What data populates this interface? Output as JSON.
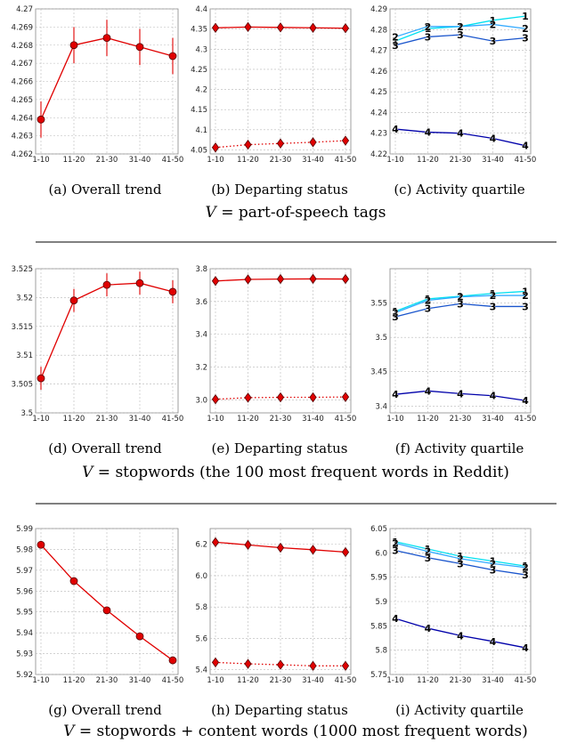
{
  "x_categories": [
    "1-10",
    "11-20",
    "21-30",
    "31-40",
    "41-50"
  ],
  "rows": [
    {
      "v_label": "V",
      "v_text": " = part-of-speech tags"
    },
    {
      "v_label": "V",
      "v_text": " = stopwords (the 100 most frequent words in Reddit)"
    },
    {
      "v_label": "V",
      "v_text": " = stopwords + content words (1000 most frequent words)"
    }
  ],
  "colors": {
    "red": "#e00000",
    "q1": "#00e0f0",
    "q2": "#33aaff",
    "q3": "#1a55cc",
    "q4": "#0000aa",
    "grid": "#b8b8b8"
  },
  "chart_data": [
    {
      "panel": "a",
      "caption": "(a) Overall trend",
      "type": "line",
      "x": [
        "1-10",
        "11-20",
        "21-30",
        "31-40",
        "41-50"
      ],
      "ylim": [
        4.262,
        4.27
      ],
      "yticks": [
        "4.262",
        "4.263",
        "4.264",
        "4.265",
        "4.266",
        "4.267",
        "4.268",
        "4.269",
        "4.27"
      ],
      "ytick_values": [
        4.262,
        4.263,
        4.264,
        4.265,
        4.266,
        4.267,
        4.268,
        4.269,
        4.27
      ],
      "series": [
        {
          "values": [
            4.2639,
            4.268,
            4.2684,
            4.2679,
            4.2674
          ],
          "err": [
            0.001,
            0.001,
            0.001,
            0.001,
            0.001
          ],
          "style": "solid",
          "marker": "circle",
          "color": "red"
        }
      ]
    },
    {
      "panel": "b",
      "caption": "(b) Departing status",
      "type": "line",
      "x": [
        "1-10",
        "11-20",
        "21-30",
        "31-40",
        "41-50"
      ],
      "ylim": [
        4.04,
        4.4
      ],
      "yticks": [
        "4.05",
        "4.1",
        "4.15",
        "4.2",
        "4.25",
        "4.3",
        "4.35",
        "4.4"
      ],
      "ytick_values": [
        4.05,
        4.1,
        4.15,
        4.2,
        4.25,
        4.3,
        4.35,
        4.4
      ],
      "series": [
        {
          "values": [
            4.353,
            4.355,
            4.354,
            4.353,
            4.352
          ],
          "style": "solid",
          "marker": "diamond",
          "color": "red"
        },
        {
          "values": [
            4.056,
            4.063,
            4.066,
            4.069,
            4.073
          ],
          "style": "dotted",
          "marker": "diamond",
          "color": "red"
        }
      ]
    },
    {
      "panel": "c",
      "caption": "(c) Activity quartile",
      "type": "line",
      "x": [
        "1-10",
        "11-20",
        "21-30",
        "31-40",
        "41-50"
      ],
      "ylim": [
        4.22,
        4.29
      ],
      "yticks": [
        "4.22",
        "4.23",
        "4.24",
        "4.25",
        "4.26",
        "4.27",
        "4.28",
        "4.29"
      ],
      "ytick_values": [
        4.22,
        4.23,
        4.24,
        4.25,
        4.26,
        4.27,
        4.28,
        4.29
      ],
      "series": [
        {
          "name": "1",
          "values": [
            4.2745,
            4.2805,
            4.2815,
            4.2845,
            4.2865
          ],
          "style": "solid",
          "marker": "label",
          "color": "q1"
        },
        {
          "name": "2",
          "values": [
            4.2765,
            4.2815,
            4.2815,
            4.2825,
            4.2805
          ],
          "style": "solid",
          "marker": "label",
          "color": "q2"
        },
        {
          "name": "3",
          "values": [
            4.2725,
            4.2765,
            4.2775,
            4.2745,
            4.276
          ],
          "style": "solid",
          "marker": "label",
          "color": "q3"
        },
        {
          "name": "4",
          "values": [
            4.232,
            4.2305,
            4.23,
            4.2275,
            4.224
          ],
          "style": "solid",
          "marker": "label",
          "color": "q4"
        }
      ]
    },
    {
      "panel": "d",
      "caption": "(d) Overall trend",
      "type": "line",
      "x": [
        "1-10",
        "11-20",
        "21-30",
        "31-40",
        "41-50"
      ],
      "ylim": [
        3.5,
        3.525
      ],
      "yticks": [
        "3.5",
        "3.505",
        "3.51",
        "3.515",
        "3.52",
        "3.525"
      ],
      "ytick_values": [
        3.5,
        3.505,
        3.51,
        3.515,
        3.52,
        3.525
      ],
      "series": [
        {
          "values": [
            3.506,
            3.5195,
            3.5222,
            3.5225,
            3.521
          ],
          "err": [
            0.002,
            0.002,
            0.002,
            0.002,
            0.002
          ],
          "style": "solid",
          "marker": "circle",
          "color": "red"
        }
      ]
    },
    {
      "panel": "e",
      "caption": "(e) Departing status",
      "type": "line",
      "x": [
        "1-10",
        "11-20",
        "21-30",
        "31-40",
        "41-50"
      ],
      "ylim": [
        2.92,
        3.8
      ],
      "yticks": [
        "3.0",
        "3.2",
        "3.4",
        "3.6",
        "3.8"
      ],
      "ytick_values": [
        3.0,
        3.2,
        3.4,
        3.6,
        3.8
      ],
      "series": [
        {
          "values": [
            3.725,
            3.735,
            3.737,
            3.738,
            3.737
          ],
          "style": "solid",
          "marker": "diamond",
          "color": "red"
        },
        {
          "values": [
            3.003,
            3.013,
            3.015,
            3.015,
            3.017
          ],
          "style": "dotted",
          "marker": "diamond",
          "color": "red"
        }
      ]
    },
    {
      "panel": "f",
      "caption": "(f) Activity quartile",
      "type": "line",
      "x": [
        "1-10",
        "11-20",
        "21-30",
        "31-40",
        "41-50"
      ],
      "ylim": [
        3.39,
        3.6
      ],
      "yticks": [
        "3.4",
        "3.45",
        "3.5",
        "3.55"
      ],
      "ytick_values": [
        3.4,
        3.45,
        3.5,
        3.55
      ],
      "series": [
        {
          "name": "1",
          "values": [
            3.538,
            3.556,
            3.56,
            3.564,
            3.567
          ],
          "style": "solid",
          "marker": "label",
          "color": "q1"
        },
        {
          "name": "2",
          "values": [
            3.536,
            3.554,
            3.559,
            3.561,
            3.561
          ],
          "style": "solid",
          "marker": "label",
          "color": "q2"
        },
        {
          "name": "3",
          "values": [
            3.53,
            3.542,
            3.549,
            3.545,
            3.545
          ],
          "style": "solid",
          "marker": "label",
          "color": "q3"
        },
        {
          "name": "4",
          "values": [
            3.417,
            3.422,
            3.418,
            3.415,
            3.408
          ],
          "style": "solid",
          "marker": "label",
          "color": "q4"
        }
      ]
    },
    {
      "panel": "g",
      "caption": "(g) Overall trend",
      "type": "line",
      "x": [
        "1-10",
        "11-20",
        "21-30",
        "31-40",
        "41-50"
      ],
      "ylim": [
        5.92,
        5.99
      ],
      "yticks": [
        "5.92",
        "5.93",
        "5.94",
        "5.95",
        "5.96",
        "5.97",
        "5.98",
        "5.99"
      ],
      "ytick_values": [
        5.92,
        5.93,
        5.94,
        5.95,
        5.96,
        5.97,
        5.98,
        5.99
      ],
      "series": [
        {
          "values": [
            5.9822,
            5.9648,
            5.9508,
            5.9383,
            5.9268
          ],
          "err": [
            0.0008,
            0.0008,
            0.0008,
            0.0008,
            0.0008
          ],
          "style": "solid",
          "marker": "circle",
          "color": "red"
        }
      ]
    },
    {
      "panel": "h",
      "caption": "(h) Departing status",
      "type": "line",
      "x": [
        "1-10",
        "11-20",
        "21-30",
        "31-40",
        "41-50"
      ],
      "ylim": [
        5.37,
        6.3
      ],
      "yticks": [
        "5.4",
        "5.6",
        "5.8",
        "6.0",
        "6.2"
      ],
      "ytick_values": [
        5.4,
        5.6,
        5.8,
        6.0,
        6.2
      ],
      "series": [
        {
          "values": [
            6.213,
            6.196,
            6.178,
            6.165,
            6.15
          ],
          "style": "solid",
          "marker": "diamond",
          "color": "red"
        },
        {
          "values": [
            5.447,
            5.438,
            5.432,
            5.425,
            5.425
          ],
          "style": "dotted",
          "marker": "diamond",
          "color": "red"
        }
      ]
    },
    {
      "panel": "i",
      "caption": "(i) Activity quartile",
      "type": "line",
      "x": [
        "1-10",
        "11-20",
        "21-30",
        "31-40",
        "41-50"
      ],
      "ylim": [
        5.75,
        6.05
      ],
      "yticks": [
        "5.75",
        "5.8",
        "5.85",
        "5.9",
        "5.95",
        "6.0",
        "6.05"
      ],
      "ytick_values": [
        5.75,
        5.8,
        5.85,
        5.9,
        5.95,
        6.0,
        6.05
      ],
      "series": [
        {
          "name": "1",
          "values": [
            6.023,
            6.008,
            5.993,
            5.983,
            5.973
          ],
          "style": "solid",
          "marker": "label",
          "color": "q1"
        },
        {
          "name": "2",
          "values": [
            6.02,
            6.003,
            5.988,
            5.978,
            5.97
          ],
          "style": "solid",
          "marker": "label",
          "color": "q2"
        },
        {
          "name": "3",
          "values": [
            6.005,
            5.99,
            5.978,
            5.965,
            5.955
          ],
          "style": "solid",
          "marker": "label",
          "color": "q3"
        },
        {
          "name": "4",
          "values": [
            5.865,
            5.845,
            5.83,
            5.818,
            5.805
          ],
          "style": "solid",
          "marker": "label",
          "color": "q4"
        }
      ]
    }
  ]
}
